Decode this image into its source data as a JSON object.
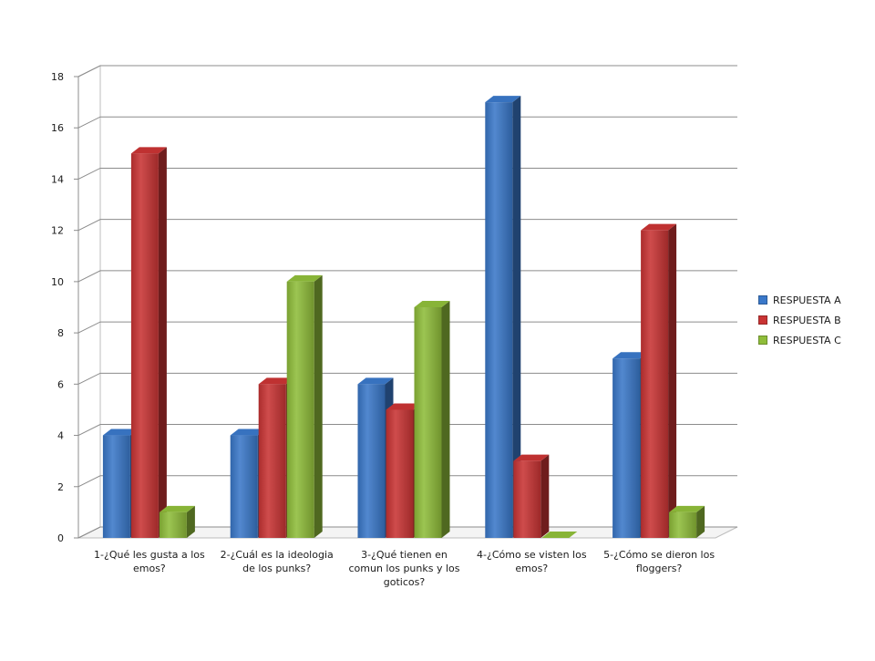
{
  "chart_data": {
    "type": "bar",
    "title": "",
    "xlabel": "",
    "ylabel": "",
    "ylim": [
      0,
      18
    ],
    "yticks": [
      0,
      2,
      4,
      6,
      8,
      10,
      12,
      14,
      16,
      18
    ],
    "grid": true,
    "three_d": true,
    "legend_position": "right",
    "categories": [
      [
        "1-¿Qué les gusta a los",
        "emos?"
      ],
      [
        "2-¿Cuál es la ideologia",
        "de los punks?"
      ],
      [
        "3-¿Qué tienen en",
        "comun los punks y los",
        "goticos?"
      ],
      [
        "4-¿Cómo se visten los",
        "emos?"
      ],
      [
        "5-¿Cómo se dieron los",
        "floggers?"
      ]
    ],
    "series": [
      {
        "name": "RESPUESTA A",
        "color": "#3a78c9",
        "values": [
          4,
          4,
          6,
          17,
          7
        ]
      },
      {
        "name": "RESPUESTA B",
        "color": "#c93434",
        "values": [
          15,
          6,
          5,
          3,
          12
        ]
      },
      {
        "name": "RESPUESTA C",
        "color": "#8fbd3a",
        "values": [
          1,
          10,
          9,
          0,
          1
        ]
      }
    ]
  }
}
